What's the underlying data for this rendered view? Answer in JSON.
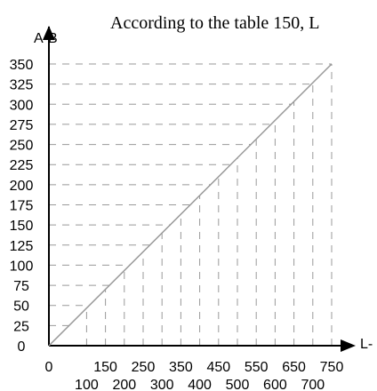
{
  "caption": "According to the table 150, L",
  "chart_data": {
    "type": "line",
    "xlabel": "L-",
    "ylabel": "A-B",
    "y_ticks": [
      0,
      25,
      50,
      75,
      100,
      125,
      150,
      175,
      200,
      225,
      250,
      275,
      300,
      325,
      350
    ],
    "x_ticks_top": [
      "0",
      "150",
      "250",
      "350",
      "450",
      "550",
      "650",
      "750"
    ],
    "x_ticks_bottom": [
      "100",
      "200",
      "300",
      "400",
      "500",
      "600",
      "700"
    ],
    "xlim": [
      0,
      750
    ],
    "ylim": [
      0,
      350
    ],
    "x_values": [
      0,
      100,
      150,
      200,
      250,
      300,
      350,
      400,
      450,
      500,
      550,
      600,
      650,
      700,
      750
    ],
    "series": [
      {
        "x": [
          0,
          750
        ],
        "y": [
          0,
          350
        ]
      }
    ],
    "dashed_guides": true
  }
}
